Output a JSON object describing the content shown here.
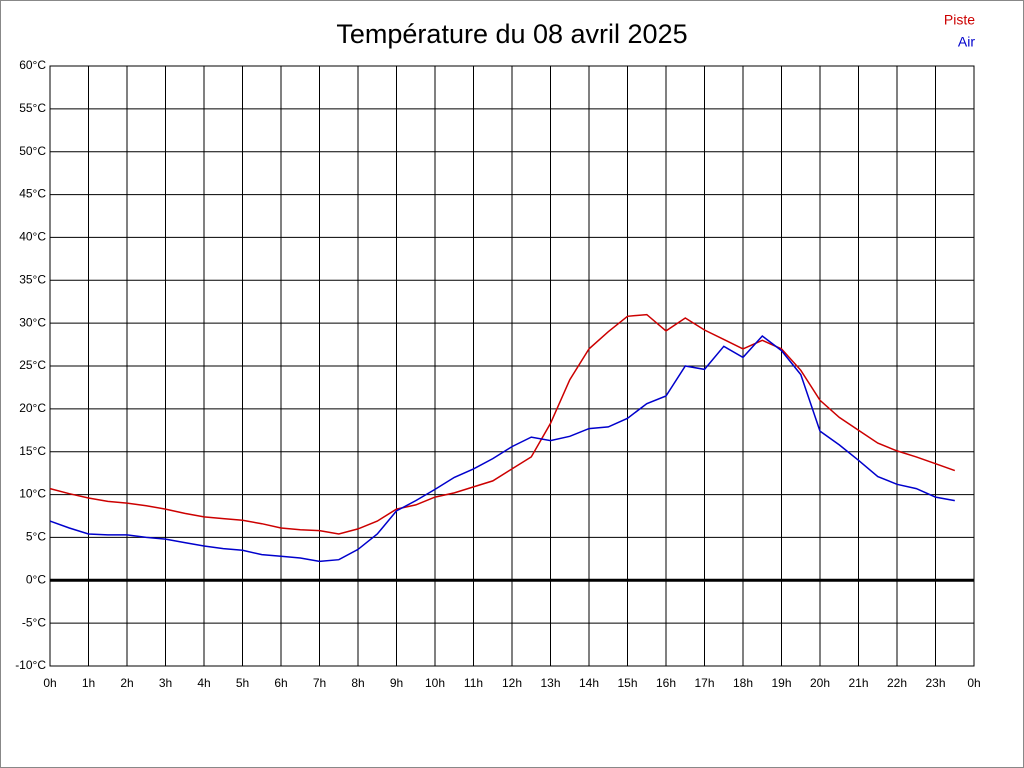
{
  "chart_data": {
    "type": "line",
    "title": "Température du 08 avril 2025",
    "x": [
      0,
      0.5,
      1,
      1.5,
      2,
      2.5,
      3,
      3.5,
      4,
      4.5,
      5,
      5.5,
      6,
      6.5,
      7,
      7.5,
      8,
      8.5,
      9,
      9.5,
      10,
      10.5,
      11,
      11.5,
      12,
      12.5,
      13,
      13.5,
      14,
      14.5,
      15,
      15.5,
      16,
      16.5,
      17,
      17.5,
      18,
      18.5,
      19,
      19.5,
      20,
      20.5,
      21,
      21.5,
      22,
      22.5,
      23,
      23.5
    ],
    "series": [
      {
        "name": "Piste",
        "color": "#cc0000",
        "values": [
          10.7,
          10.1,
          9.6,
          9.2,
          9.0,
          8.7,
          8.3,
          7.8,
          7.4,
          7.2,
          7.0,
          6.6,
          6.1,
          5.9,
          5.8,
          5.4,
          6.0,
          6.9,
          8.3,
          8.8,
          9.7,
          10.2,
          10.9,
          11.6,
          13.0,
          14.4,
          18.3,
          23.4,
          27.0,
          29.0,
          30.8,
          31.0,
          29.1,
          30.6,
          29.2,
          28.1,
          27.0,
          28.0,
          27.0,
          24.5,
          21.0,
          19.0,
          17.5,
          16.0,
          15.1,
          14.4,
          13.6,
          12.8
        ]
      },
      {
        "name": "Air",
        "color": "#0000cc",
        "values": [
          6.9,
          6.1,
          5.4,
          5.3,
          5.3,
          5.0,
          4.8,
          4.4,
          4.0,
          3.7,
          3.5,
          3.0,
          2.8,
          2.6,
          2.2,
          2.4,
          3.6,
          5.4,
          8.1,
          9.3,
          10.6,
          12.0,
          13.0,
          14.2,
          15.6,
          16.7,
          16.3,
          16.8,
          17.7,
          17.9,
          18.9,
          20.6,
          21.5,
          25.0,
          24.6,
          27.3,
          26.0,
          28.5,
          26.8,
          24.0,
          17.4,
          15.8,
          14.0,
          12.1,
          11.2,
          10.7,
          9.7,
          9.3
        ]
      }
    ],
    "xlim": [
      0,
      24
    ],
    "xticks": [
      {
        "value": 0,
        "label": "0h"
      },
      {
        "value": 1,
        "label": "1h"
      },
      {
        "value": 2,
        "label": "2h"
      },
      {
        "value": 3,
        "label": "3h"
      },
      {
        "value": 4,
        "label": "4h"
      },
      {
        "value": 5,
        "label": "5h"
      },
      {
        "value": 6,
        "label": "6h"
      },
      {
        "value": 7,
        "label": "7h"
      },
      {
        "value": 8,
        "label": "8h"
      },
      {
        "value": 9,
        "label": "9h"
      },
      {
        "value": 10,
        "label": "10h"
      },
      {
        "value": 11,
        "label": "11h"
      },
      {
        "value": 12,
        "label": "12h"
      },
      {
        "value": 13,
        "label": "13h"
      },
      {
        "value": 14,
        "label": "14h"
      },
      {
        "value": 15,
        "label": "15h"
      },
      {
        "value": 16,
        "label": "16h"
      },
      {
        "value": 17,
        "label": "17h"
      },
      {
        "value": 18,
        "label": "18h"
      },
      {
        "value": 19,
        "label": "19h"
      },
      {
        "value": 20,
        "label": "20h"
      },
      {
        "value": 21,
        "label": "21h"
      },
      {
        "value": 22,
        "label": "22h"
      },
      {
        "value": 23,
        "label": "23h"
      },
      {
        "value": 24,
        "label": "0h"
      }
    ],
    "ylim": [
      -10,
      60
    ],
    "yticks": [
      {
        "value": -10,
        "label": "-10°C"
      },
      {
        "value": -5,
        "label": "-5°C"
      },
      {
        "value": 0,
        "label": "0°C"
      },
      {
        "value": 5,
        "label": "5°C"
      },
      {
        "value": 10,
        "label": "10°C"
      },
      {
        "value": 15,
        "label": "15°C"
      },
      {
        "value": 20,
        "label": "20°C"
      },
      {
        "value": 25,
        "label": "25°C"
      },
      {
        "value": 30,
        "label": "30°C"
      },
      {
        "value": 35,
        "label": "35°C"
      },
      {
        "value": 40,
        "label": "40°C"
      },
      {
        "value": 45,
        "label": "45°C"
      },
      {
        "value": 50,
        "label": "50°C"
      },
      {
        "value": 55,
        "label": "55°C"
      },
      {
        "value": 60,
        "label": "60°C"
      }
    ],
    "grid": true,
    "zero_line": true,
    "legend": "top-right"
  }
}
